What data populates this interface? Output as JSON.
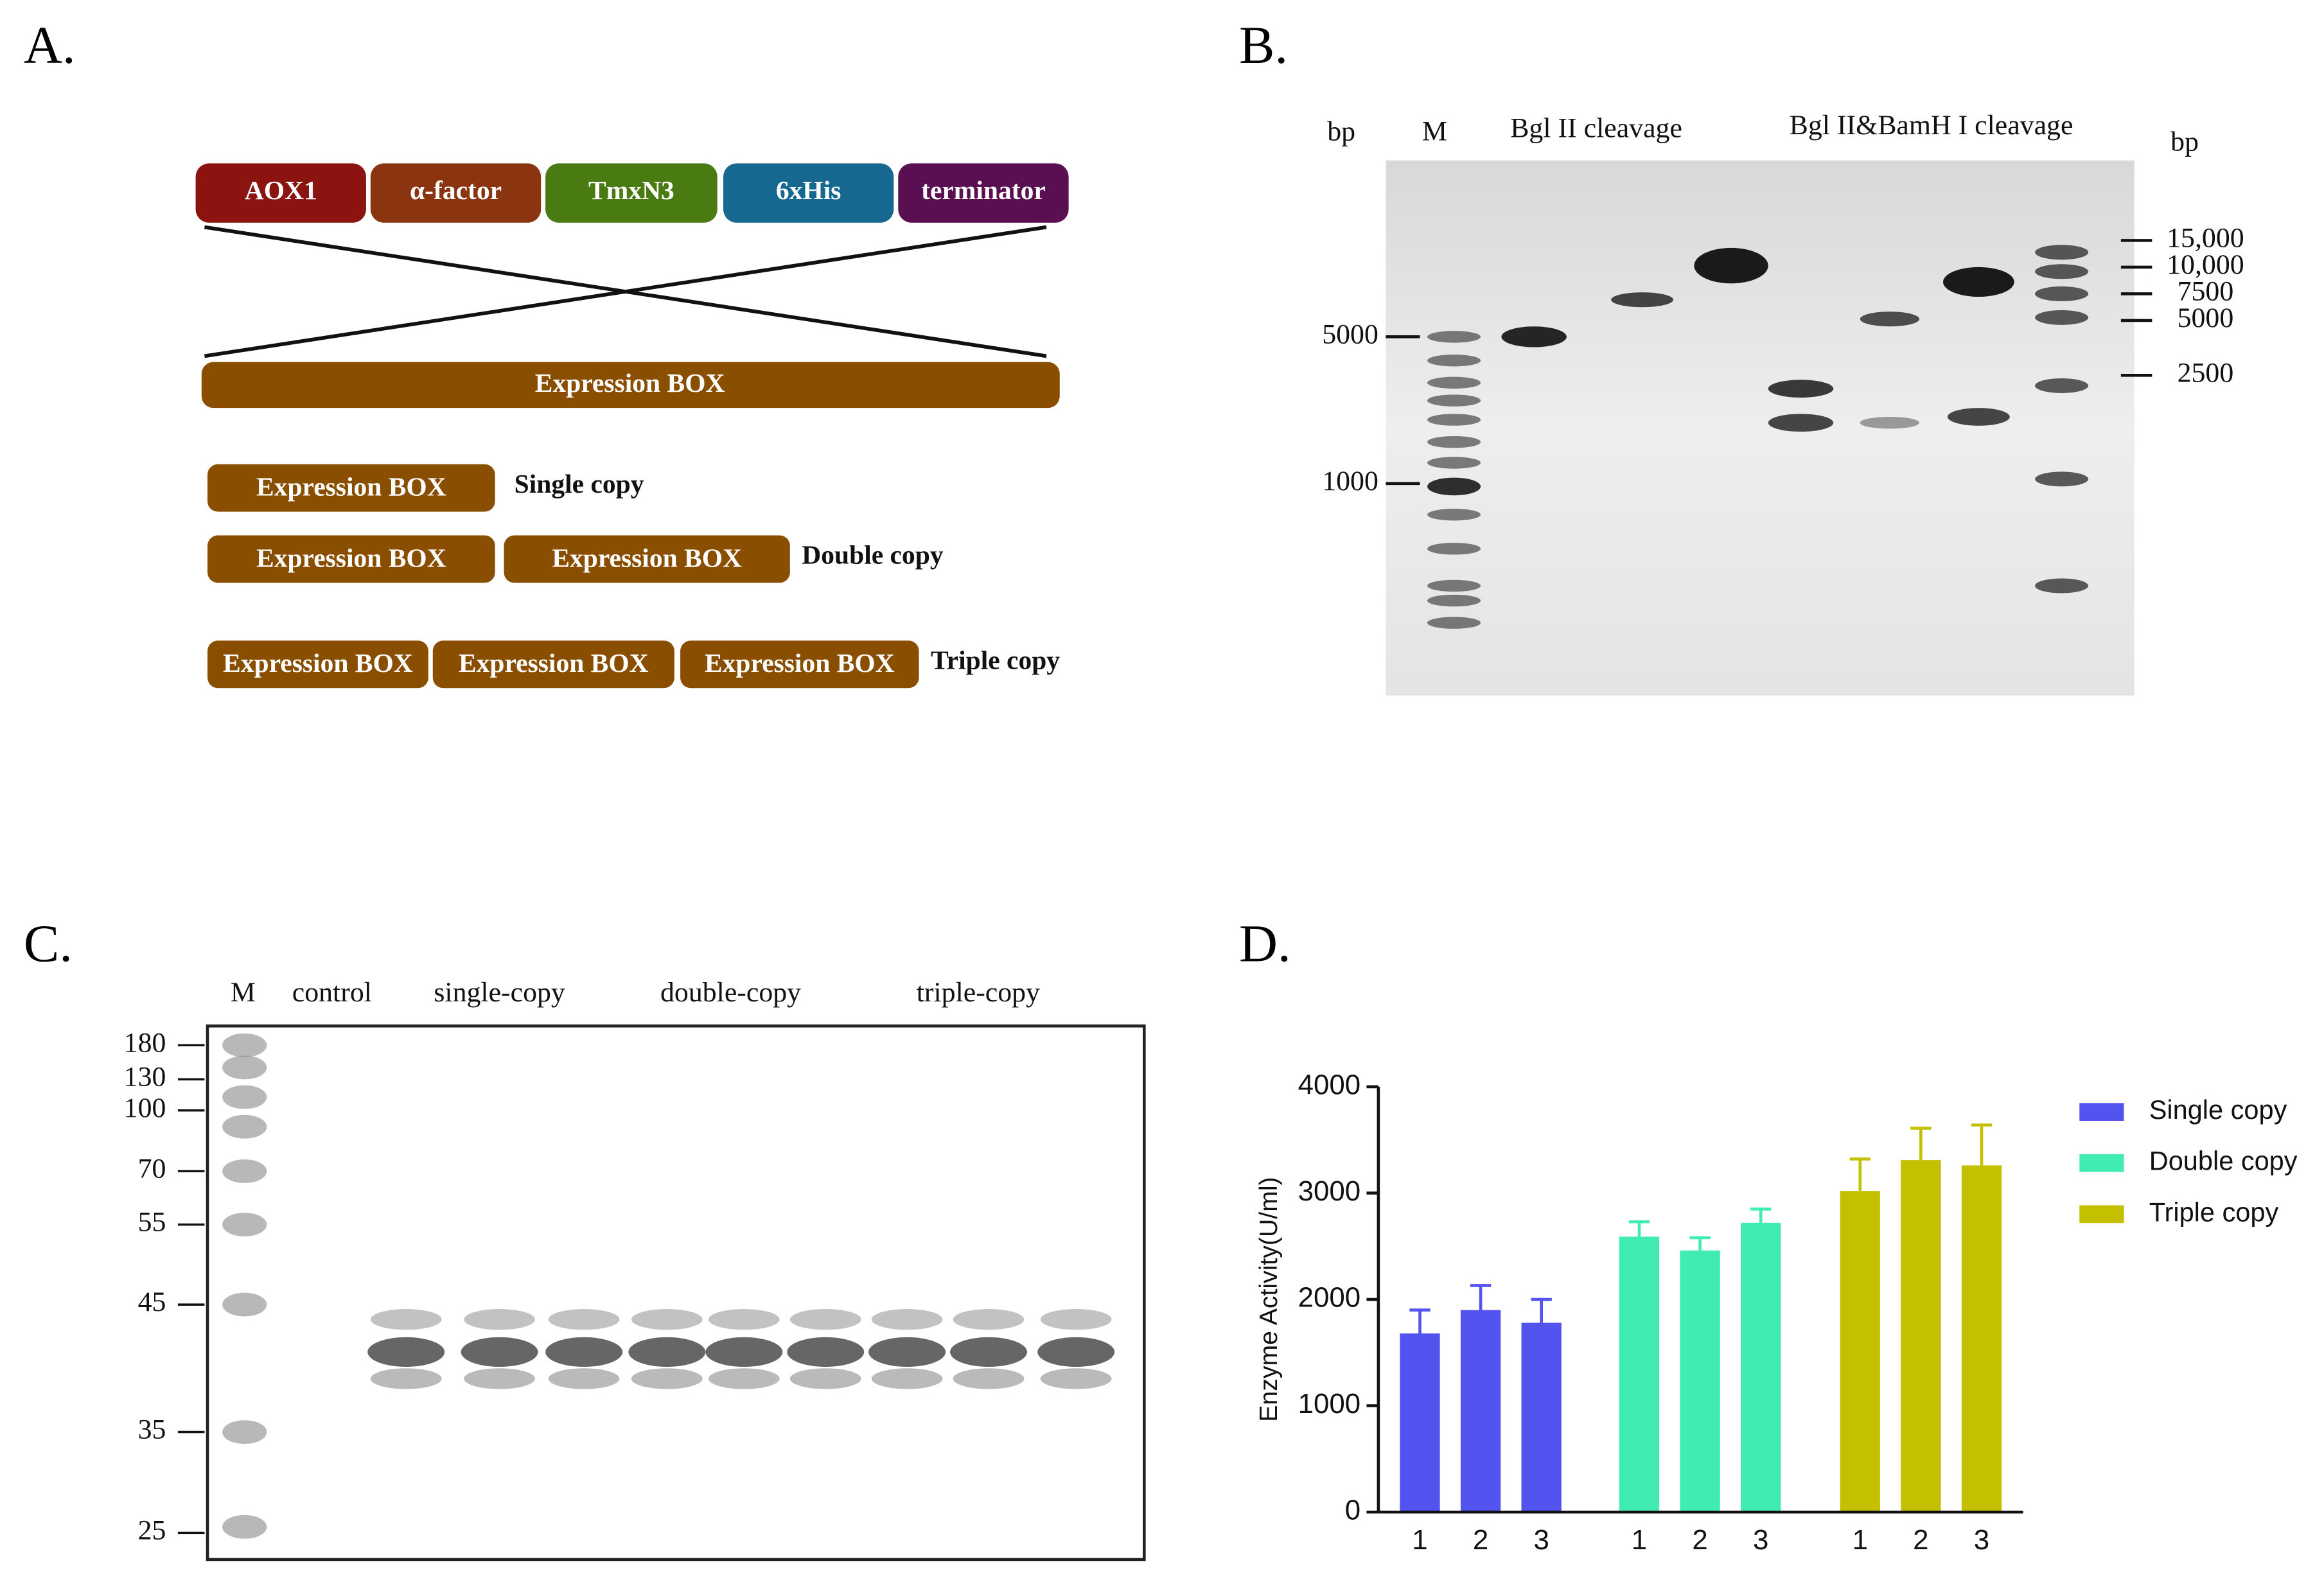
{
  "panel_a": {
    "label": "A.",
    "segments": [
      "AOX1",
      "α-factor",
      "TmxN3",
      "6xHis",
      "terminator"
    ],
    "expression_box": "Expression BOX",
    "copies": [
      {
        "boxes": [
          "Expression BOX"
        ],
        "label": "Single copy"
      },
      {
        "boxes": [
          "Expression BOX",
          "Expression BOX"
        ],
        "label": "Double copy"
      },
      {
        "boxes": [
          "Expression BOX",
          "Expression BOX",
          "Expression BOX"
        ],
        "label": "Triple copy"
      }
    ]
  },
  "panel_b": {
    "label": "B.",
    "left_unit": "bp",
    "marker_lane": "M",
    "lane_groups": [
      "Bgl II cleavage",
      "Bgl II&BamH I cleavage"
    ],
    "right_unit": "bp",
    "left_markers": [
      "5000",
      "1000"
    ],
    "right_markers": [
      "15,000",
      "10,000",
      "7500",
      "5000",
      "2500"
    ]
  },
  "panel_c": {
    "label": "C.",
    "marker_lane": "M",
    "lane_groups": [
      "control",
      "single-copy",
      "double-copy",
      "triple-copy"
    ],
    "markers": [
      "180",
      "130",
      "100",
      "70",
      "55",
      "45",
      "35",
      "25"
    ]
  },
  "chart_data": {
    "type": "bar",
    "panel_label": "D.",
    "y_label": "Enzyme Activity(U/ml)",
    "categories": [
      "1",
      "2",
      "3"
    ],
    "series": [
      {
        "name": "Single copy",
        "color": "#5353f0",
        "values": [
          1680,
          1900,
          1780
        ],
        "errors": [
          220,
          230,
          220
        ]
      },
      {
        "name": "Double copy",
        "color": "#40ecb0",
        "values": [
          2590,
          2460,
          2720
        ],
        "errors": [
          140,
          120,
          130
        ]
      },
      {
        "name": "Triple copy",
        "color": "#c4c000",
        "values": [
          3020,
          3310,
          3260
        ],
        "errors": [
          300,
          300,
          380
        ]
      }
    ],
    "ylim": [
      0,
      4000
    ],
    "yticks": [
      0,
      1000,
      2000,
      3000,
      4000
    ],
    "grid": false
  }
}
